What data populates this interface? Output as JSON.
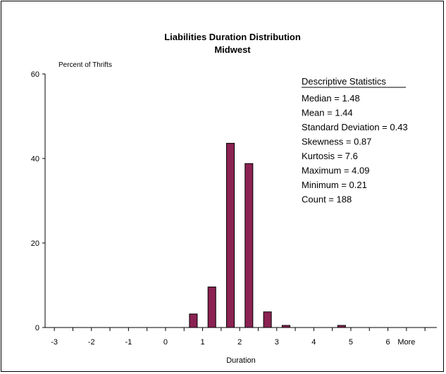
{
  "chart_data": {
    "type": "bar",
    "title": "Liabilities Duration Distribution",
    "subtitle": "Midwest",
    "xlabel": "Duration",
    "ylabel": "Percent of Thrifts",
    "ylim": [
      0,
      60
    ],
    "yticks": [
      "0",
      "20",
      "40",
      "60"
    ],
    "xtick_labels": [
      "-3",
      "-2",
      "-1",
      "0",
      "1",
      "2",
      "3",
      "4",
      "5",
      "6",
      "More"
    ],
    "categories": [
      "-3",
      "-2.5",
      "-2",
      "-1.5",
      "-1",
      "-0.5",
      "0",
      "0.5",
      "1",
      "1.5",
      "2",
      "2.5",
      "3",
      "3.5",
      "4",
      "4.5",
      "5",
      "5.5",
      "6",
      "More"
    ],
    "values": [
      0,
      0,
      0,
      0,
      0,
      0,
      0,
      3.2,
      9.6,
      43.6,
      38.8,
      3.7,
      0.5,
      0,
      0,
      0.5,
      0,
      0,
      0,
      0
    ],
    "bar_color": "#8B2252",
    "grid": false,
    "legend": "none"
  },
  "stats": {
    "heading": "Descriptive Statistics",
    "lines": [
      "Median = 1.48",
      "Mean = 1.44",
      "Standard Deviation = 0.43",
      "Skewness = 0.87",
      "Kurtosis = 7.6",
      "Maximum = 4.09",
      "Minimum = 0.21",
      "Count = 188"
    ]
  }
}
